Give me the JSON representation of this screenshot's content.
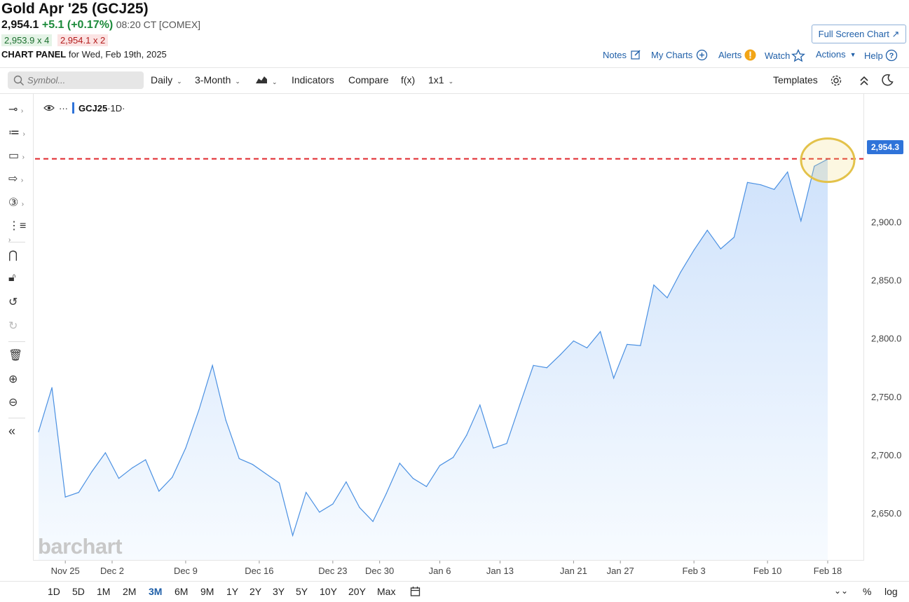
{
  "header": {
    "title": "Gold Apr '25 (GCJ25)",
    "last": "2,954.1",
    "change": "+5.1 (+0.17%)",
    "time": "08:20 CT [COMEX]",
    "bid": "2,953.9 x 4",
    "ask": "2,954.1 x 2",
    "panel_label": "CHART PANEL",
    "panel_date": "for Wed, Feb 19th, 2025",
    "fullscreen": "Full Screen Chart"
  },
  "nav": {
    "notes": "Notes",
    "my_charts": "My Charts",
    "alerts": "Alerts",
    "watch": "Watch",
    "actions": "Actions",
    "help": "Help"
  },
  "toolbar": {
    "search_placeholder": "Symbol...",
    "interval": "Daily",
    "period": "3-Month",
    "indicators": "Indicators",
    "compare": "Compare",
    "fx": "f(x)",
    "layout": "1x1",
    "templates": "Templates"
  },
  "legend": {
    "dots": "···",
    "symbol": "GCJ25",
    "interval": "·1D·"
  },
  "brand": "barchart",
  "price_tag": "2,954.3",
  "bottom": {
    "ranges": [
      "1D",
      "5D",
      "1M",
      "2M",
      "3M",
      "6M",
      "9M",
      "1Y",
      "2Y",
      "3Y",
      "5Y",
      "10Y",
      "20Y",
      "Max"
    ],
    "active": "3M",
    "percent": "%",
    "log": "log"
  },
  "colors": {
    "line": "#4a90e2",
    "fill_top": "#cfe2fb",
    "fill_bottom": "#f7fbff",
    "ref_line": "#e0262b",
    "highlight": "#e3c24a",
    "positive": "#1b8a3a",
    "link": "#1f5fa8"
  },
  "chart_data": {
    "type": "area",
    "title": "",
    "xlabel": "",
    "ylabel": "",
    "ylim": [
      2610,
      3010
    ],
    "yticks": [
      2650,
      2700,
      2750,
      2800,
      2850,
      2900
    ],
    "ytick_labels": [
      "2,650.0",
      "2,700.0",
      "2,750.0",
      "2,800.0",
      "2,850.0",
      "2,900.0"
    ],
    "xtick_labels": [
      "Nov 25",
      "Dec 2",
      "Dec 9",
      "Dec 16",
      "Dec 23",
      "Dec 30",
      "Jan 6",
      "Jan 13",
      "Jan 21",
      "Jan 27",
      "Feb 3",
      "Feb 10",
      "Feb 18"
    ],
    "xtick_index": [
      2,
      5.5,
      11,
      16.5,
      22,
      25.5,
      30,
      34.5,
      40,
      43.5,
      49,
      54.5,
      59
    ],
    "reference_line": 2954.3,
    "values": [
      2720,
      2758,
      2664,
      2668,
      2686,
      2702,
      2680,
      2689,
      2696,
      2669,
      2681,
      2706,
      2739,
      2777,
      2730,
      2697,
      2692,
      2684,
      2676,
      2631,
      2668,
      2651,
      2658,
      2677,
      2655,
      2643,
      2667,
      2693,
      2680,
      2673,
      2691,
      2698,
      2717,
      2743,
      2706,
      2710,
      2744,
      2777,
      2775,
      2786,
      2798,
      2792,
      2806,
      2766,
      2795,
      2794,
      2846,
      2835,
      2857,
      2876,
      2893,
      2877,
      2887,
      2934,
      2932,
      2928,
      2943,
      2901,
      2948,
      2954
    ]
  }
}
